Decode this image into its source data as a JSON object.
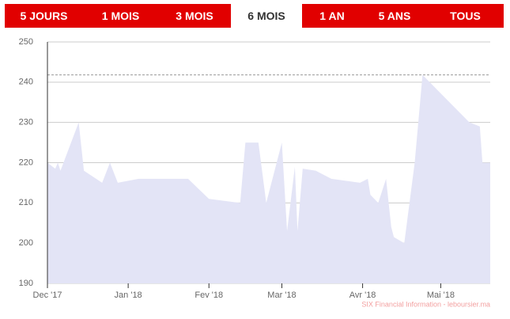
{
  "tabs": [
    "5 JOURS",
    "1 MOIS",
    "3 MOIS",
    "6 MOIS",
    "1 AN",
    "5 ANS",
    "TOUS"
  ],
  "selected_tab": 3,
  "chart_data": {
    "type": "area",
    "color": "#e3e4f6",
    "source": "SIX Financial Information - leboursier.ma",
    "x": [
      0,
      3,
      4,
      5,
      12,
      14,
      21,
      24,
      27,
      35,
      54,
      62,
      74,
      76,
      81,
      84,
      90,
      92,
      95,
      96,
      98,
      103,
      109,
      120,
      123,
      124,
      127,
      130,
      132,
      133,
      137,
      141,
      144,
      162,
      166,
      167,
      170
    ],
    "values": [
      220,
      218.5,
      220,
      218,
      230,
      218,
      215,
      220,
      215,
      216,
      216,
      211,
      210,
      225,
      225,
      210,
      225,
      203,
      219,
      203,
      218.5,
      218,
      216,
      215,
      216,
      212,
      210,
      216,
      204,
      201.5,
      200,
      220,
      241.8,
      230,
      229,
      220,
      220
    ],
    "xlim": [
      0,
      170
    ],
    "xticks": [
      {
        "value": 0,
        "label": "Dec '17"
      },
      {
        "value": 31,
        "label": "Jan '18"
      },
      {
        "value": 62,
        "label": "Fev '18"
      },
      {
        "value": 90,
        "label": "Mar '18"
      },
      {
        "value": 121,
        "label": "Avr '18"
      },
      {
        "value": 151,
        "label": "Mai '18"
      }
    ],
    "ylim": [
      190,
      250
    ],
    "yticks": [
      190,
      200,
      210,
      220,
      230,
      240,
      250
    ],
    "reference_line": 241.8,
    "grid": true
  }
}
